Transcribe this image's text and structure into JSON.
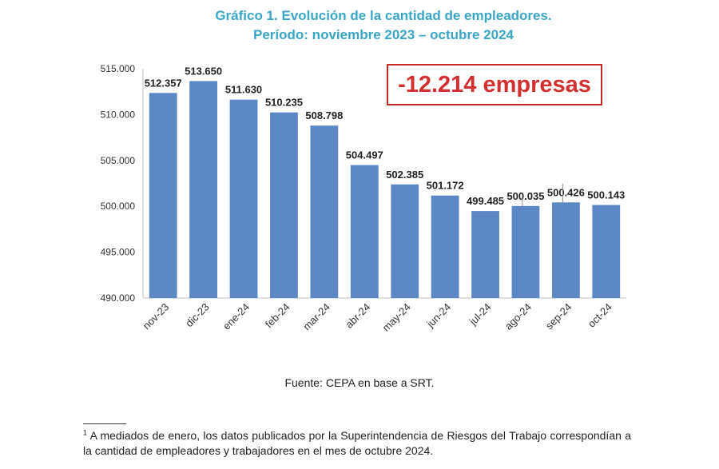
{
  "title": {
    "line1": "Gráfico 1. Evolución de la cantidad de empleadores.",
    "line2": "Período: noviembre 2023 – octubre 2024"
  },
  "callout": {
    "text": "-12.214 empresas",
    "color": "#d32f2f"
  },
  "source": "Fuente: CEPA en base a SRT.",
  "footnote": {
    "marker": "1",
    "text": "A mediados de enero, los datos publicados por la Superintendencia de Riesgos del Trabajo correspondían a la cantidad de empleadores y trabajadores en el mes de octubre 2024."
  },
  "chart_data": {
    "type": "bar",
    "categories": [
      "nov-23",
      "dic-23",
      "ene-24",
      "feb-24",
      "mar-24",
      "abr-24",
      "may-24",
      "jun-24",
      "jul-24",
      "ago-24",
      "sep-24",
      "oct-24"
    ],
    "values": [
      512357,
      513650,
      511630,
      510235,
      508798,
      504497,
      502385,
      501172,
      499485,
      500035,
      500426,
      500143
    ],
    "data_labels": [
      "512.357",
      "513.650",
      "511.630",
      "510.235",
      "508.798",
      "504.497",
      "502.385",
      "501.172",
      "499.485",
      "500.035",
      "500.426",
      "500.143"
    ],
    "y_ticks": [
      490000,
      495000,
      500000,
      505000,
      510000,
      515000
    ],
    "y_tick_labels": [
      "490.000",
      "495.000",
      "500.000",
      "505.000",
      "510.000",
      "515.000"
    ],
    "ylim": [
      490000,
      515000
    ],
    "bar_color": "#5b87c5",
    "grid": false,
    "title": "Gráfico 1. Evolución de la cantidad de empleadores. Período: noviembre 2023 – octubre 2024",
    "xlabel": "",
    "ylabel": ""
  }
}
